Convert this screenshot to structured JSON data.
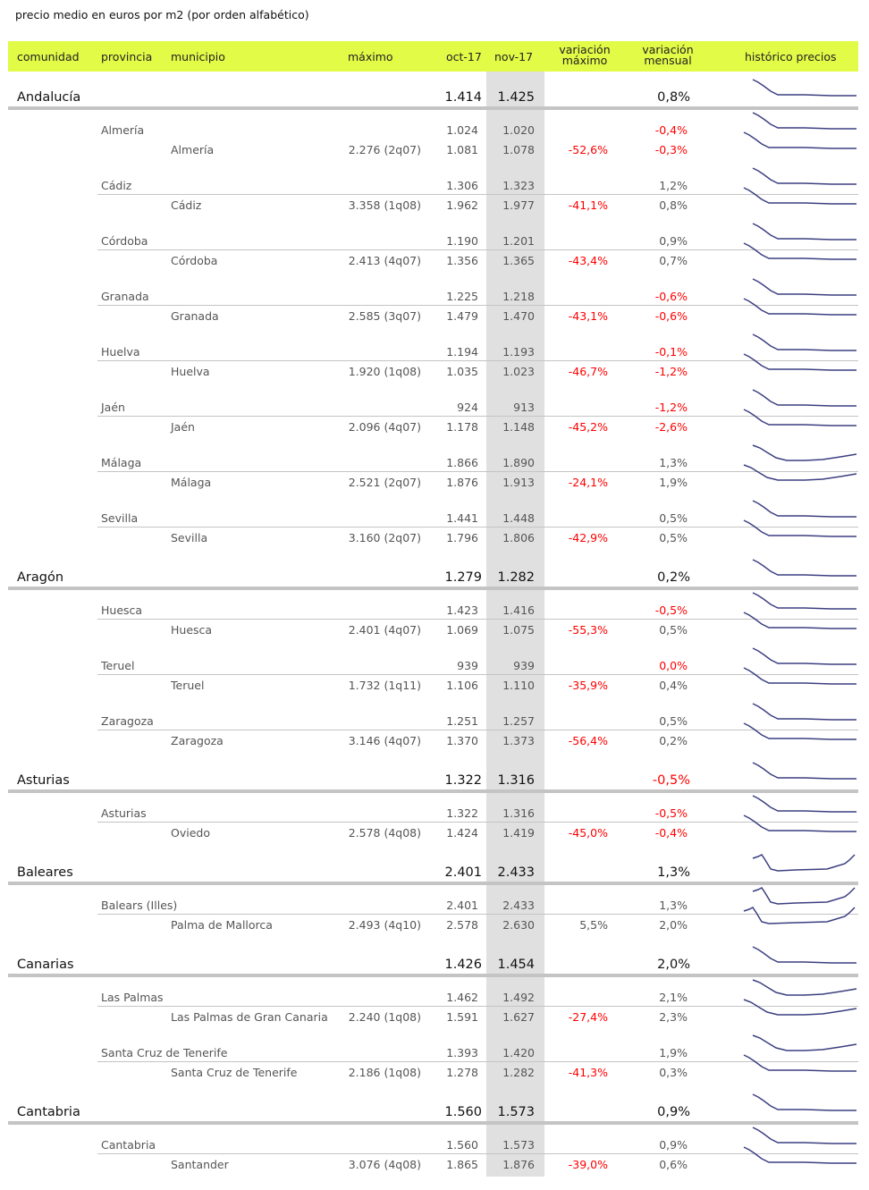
{
  "title": "precio medio en euros por m2 (por orden alfabético)",
  "header": {
    "comunidad": "comunidad",
    "provincia": "provincia",
    "municipio": "municipio",
    "maximo": "máximo",
    "oct": "oct-17",
    "nov": "nov-17",
    "var_max_1": "variación",
    "var_max_2": "máximo",
    "var_men_1": "variación",
    "var_men_2": "mensual",
    "historico": "histórico precios"
  },
  "colors": {
    "header_bg": "#e1fb47",
    "negative": "#ff0000",
    "sparkline": "#3c3f80",
    "highlight_column": "#e0e0e0"
  },
  "rows": [
    {
      "type": "region",
      "name": "Andalucía",
      "oct": "1.414",
      "nov": "1.425",
      "var_mensual": "0,8%",
      "trend": "decline"
    },
    {
      "type": "provincia",
      "name": "Almería",
      "oct": "1.024",
      "nov": "1.020",
      "var_mensual": "-0,4%",
      "trend": "decline"
    },
    {
      "type": "municipio",
      "name": "Almería",
      "maximo": "2.276 (2q07)",
      "oct": "1.081",
      "nov": "1.078",
      "var_maximo": "-52,6%",
      "var_mensual": "-0,3%",
      "trend": "decline"
    },
    {
      "type": "provincia",
      "name": "Cádiz",
      "oct": "1.306",
      "nov": "1.323",
      "var_mensual": "1,2%",
      "trend": "decline"
    },
    {
      "type": "municipio",
      "name": "Cádiz",
      "maximo": "3.358 (1q08)",
      "oct": "1.962",
      "nov": "1.977",
      "var_maximo": "-41,1%",
      "var_mensual": "0,8%",
      "trend": "decline"
    },
    {
      "type": "provincia",
      "name": "Córdoba",
      "oct": "1.190",
      "nov": "1.201",
      "var_mensual": "0,9%",
      "trend": "decline"
    },
    {
      "type": "municipio",
      "name": "Córdoba",
      "maximo": "2.413 (4q07)",
      "oct": "1.356",
      "nov": "1.365",
      "var_maximo": "-43,4%",
      "var_mensual": "0,7%",
      "trend": "decline"
    },
    {
      "type": "provincia",
      "name": "Granada",
      "oct": "1.225",
      "nov": "1.218",
      "var_mensual": "-0,6%",
      "trend": "decline"
    },
    {
      "type": "municipio",
      "name": "Granada",
      "maximo": "2.585 (3q07)",
      "oct": "1.479",
      "nov": "1.470",
      "var_maximo": "-43,1%",
      "var_mensual": "-0,6%",
      "trend": "decline"
    },
    {
      "type": "provincia",
      "name": "Huelva",
      "oct": "1.194",
      "nov": "1.193",
      "var_mensual": "-0,1%",
      "trend": "decline"
    },
    {
      "type": "municipio",
      "name": "Huelva",
      "maximo": "1.920 (1q08)",
      "oct": "1.035",
      "nov": "1.023",
      "var_maximo": "-46,7%",
      "var_mensual": "-1,2%",
      "trend": "decline"
    },
    {
      "type": "provincia",
      "name": "Jaén",
      "oct": "924",
      "nov": "913",
      "var_mensual": "-1,2%",
      "trend": "decline"
    },
    {
      "type": "municipio",
      "name": "Jaén",
      "maximo": "2.096 (4q07)",
      "oct": "1.178",
      "nov": "1.148",
      "var_maximo": "-45,2%",
      "var_mensual": "-2,6%",
      "trend": "decline"
    },
    {
      "type": "provincia",
      "name": "Málaga",
      "oct": "1.866",
      "nov": "1.890",
      "var_mensual": "1,3%",
      "trend": "recover"
    },
    {
      "type": "municipio",
      "name": "Málaga",
      "maximo": "2.521 (2q07)",
      "oct": "1.876",
      "nov": "1.913",
      "var_maximo": "-24,1%",
      "var_mensual": "1,9%",
      "trend": "recover"
    },
    {
      "type": "provincia",
      "name": "Sevilla",
      "oct": "1.441",
      "nov": "1.448",
      "var_mensual": "0,5%",
      "trend": "decline"
    },
    {
      "type": "municipio",
      "name": "Sevilla",
      "maximo": "3.160 (2q07)",
      "oct": "1.796",
      "nov": "1.806",
      "var_maximo": "-42,9%",
      "var_mensual": "0,5%",
      "trend": "decline"
    },
    {
      "type": "region",
      "name": "Aragón",
      "oct": "1.279",
      "nov": "1.282",
      "var_mensual": "0,2%",
      "trend": "decline"
    },
    {
      "type": "provincia",
      "name": "Huesca",
      "oct": "1.423",
      "nov": "1.416",
      "var_mensual": "-0,5%",
      "trend": "decline"
    },
    {
      "type": "municipio",
      "name": "Huesca",
      "maximo": "2.401 (4q07)",
      "oct": "1.069",
      "nov": "1.075",
      "var_maximo": "-55,3%",
      "var_mensual": "0,5%",
      "trend": "decline"
    },
    {
      "type": "provincia",
      "name": "Teruel",
      "oct": "939",
      "nov": "939",
      "var_mensual": "0,0%",
      "trend": "decline"
    },
    {
      "type": "municipio",
      "name": "Teruel",
      "maximo": "1.732 (1q11)",
      "oct": "1.106",
      "nov": "1.110",
      "var_maximo": "-35,9%",
      "var_mensual": "0,4%",
      "trend": "decline"
    },
    {
      "type": "provincia",
      "name": "Zaragoza",
      "oct": "1.251",
      "nov": "1.257",
      "var_mensual": "0,5%",
      "trend": "decline"
    },
    {
      "type": "municipio",
      "name": "Zaragoza",
      "maximo": "3.146 (4q07)",
      "oct": "1.370",
      "nov": "1.373",
      "var_maximo": "-56,4%",
      "var_mensual": "0,2%",
      "trend": "decline"
    },
    {
      "type": "region",
      "name": "Asturias",
      "oct": "1.322",
      "nov": "1.316",
      "var_mensual": "-0,5%",
      "trend": "decline"
    },
    {
      "type": "provincia",
      "name": "Asturias",
      "oct": "1.322",
      "nov": "1.316",
      "var_mensual": "-0,5%",
      "trend": "decline"
    },
    {
      "type": "municipio",
      "name": "Oviedo",
      "maximo": "2.578 (4q08)",
      "oct": "1.424",
      "nov": "1.419",
      "var_maximo": "-45,0%",
      "var_mensual": "-0,4%",
      "trend": "decline"
    },
    {
      "type": "region",
      "name": "Baleares",
      "oct": "2.401",
      "nov": "2.433",
      "var_mensual": "1,3%",
      "trend": "vshape"
    },
    {
      "type": "provincia",
      "name": "Balears (Illes)",
      "oct": "2.401",
      "nov": "2.433",
      "var_mensual": "1,3%",
      "trend": "vshape"
    },
    {
      "type": "municipio",
      "name": "Palma de Mallorca",
      "maximo": "2.493 (4q10)",
      "oct": "2.578",
      "nov": "2.630",
      "var_maximo": "5,5%",
      "var_mensual": "2,0%",
      "trend": "vshape"
    },
    {
      "type": "region",
      "name": "Canarias",
      "oct": "1.426",
      "nov": "1.454",
      "var_mensual": "2,0%",
      "trend": "decline"
    },
    {
      "type": "provincia",
      "name": "Las Palmas",
      "oct": "1.462",
      "nov": "1.492",
      "var_mensual": "2,1%",
      "trend": "recover"
    },
    {
      "type": "municipio",
      "name": "Las Palmas de Gran Canaria",
      "maximo": "2.240 (1q08)",
      "oct": "1.591",
      "nov": "1.627",
      "var_maximo": "-27,4%",
      "var_mensual": "2,3%",
      "trend": "recover"
    },
    {
      "type": "provincia",
      "name": "Santa Cruz de Tenerife",
      "oct": "1.393",
      "nov": "1.420",
      "var_mensual": "1,9%",
      "trend": "recover"
    },
    {
      "type": "municipio",
      "name": "Santa Cruz de Tenerife",
      "maximo": "2.186 (1q08)",
      "oct": "1.278",
      "nov": "1.282",
      "var_maximo": "-41,3%",
      "var_mensual": "0,3%",
      "trend": "decline"
    },
    {
      "type": "region",
      "name": "Cantabria",
      "oct": "1.560",
      "nov": "1.573",
      "var_mensual": "0,9%",
      "trend": "decline"
    },
    {
      "type": "provincia",
      "name": "Cantabria",
      "oct": "1.560",
      "nov": "1.573",
      "var_mensual": "0,9%",
      "trend": "decline"
    },
    {
      "type": "municipio",
      "name": "Santander",
      "maximo": "3.076 (4q08)",
      "oct": "1.865",
      "nov": "1.876",
      "var_maximo": "-39,0%",
      "var_mensual": "0,6%",
      "trend": "decline"
    }
  ]
}
